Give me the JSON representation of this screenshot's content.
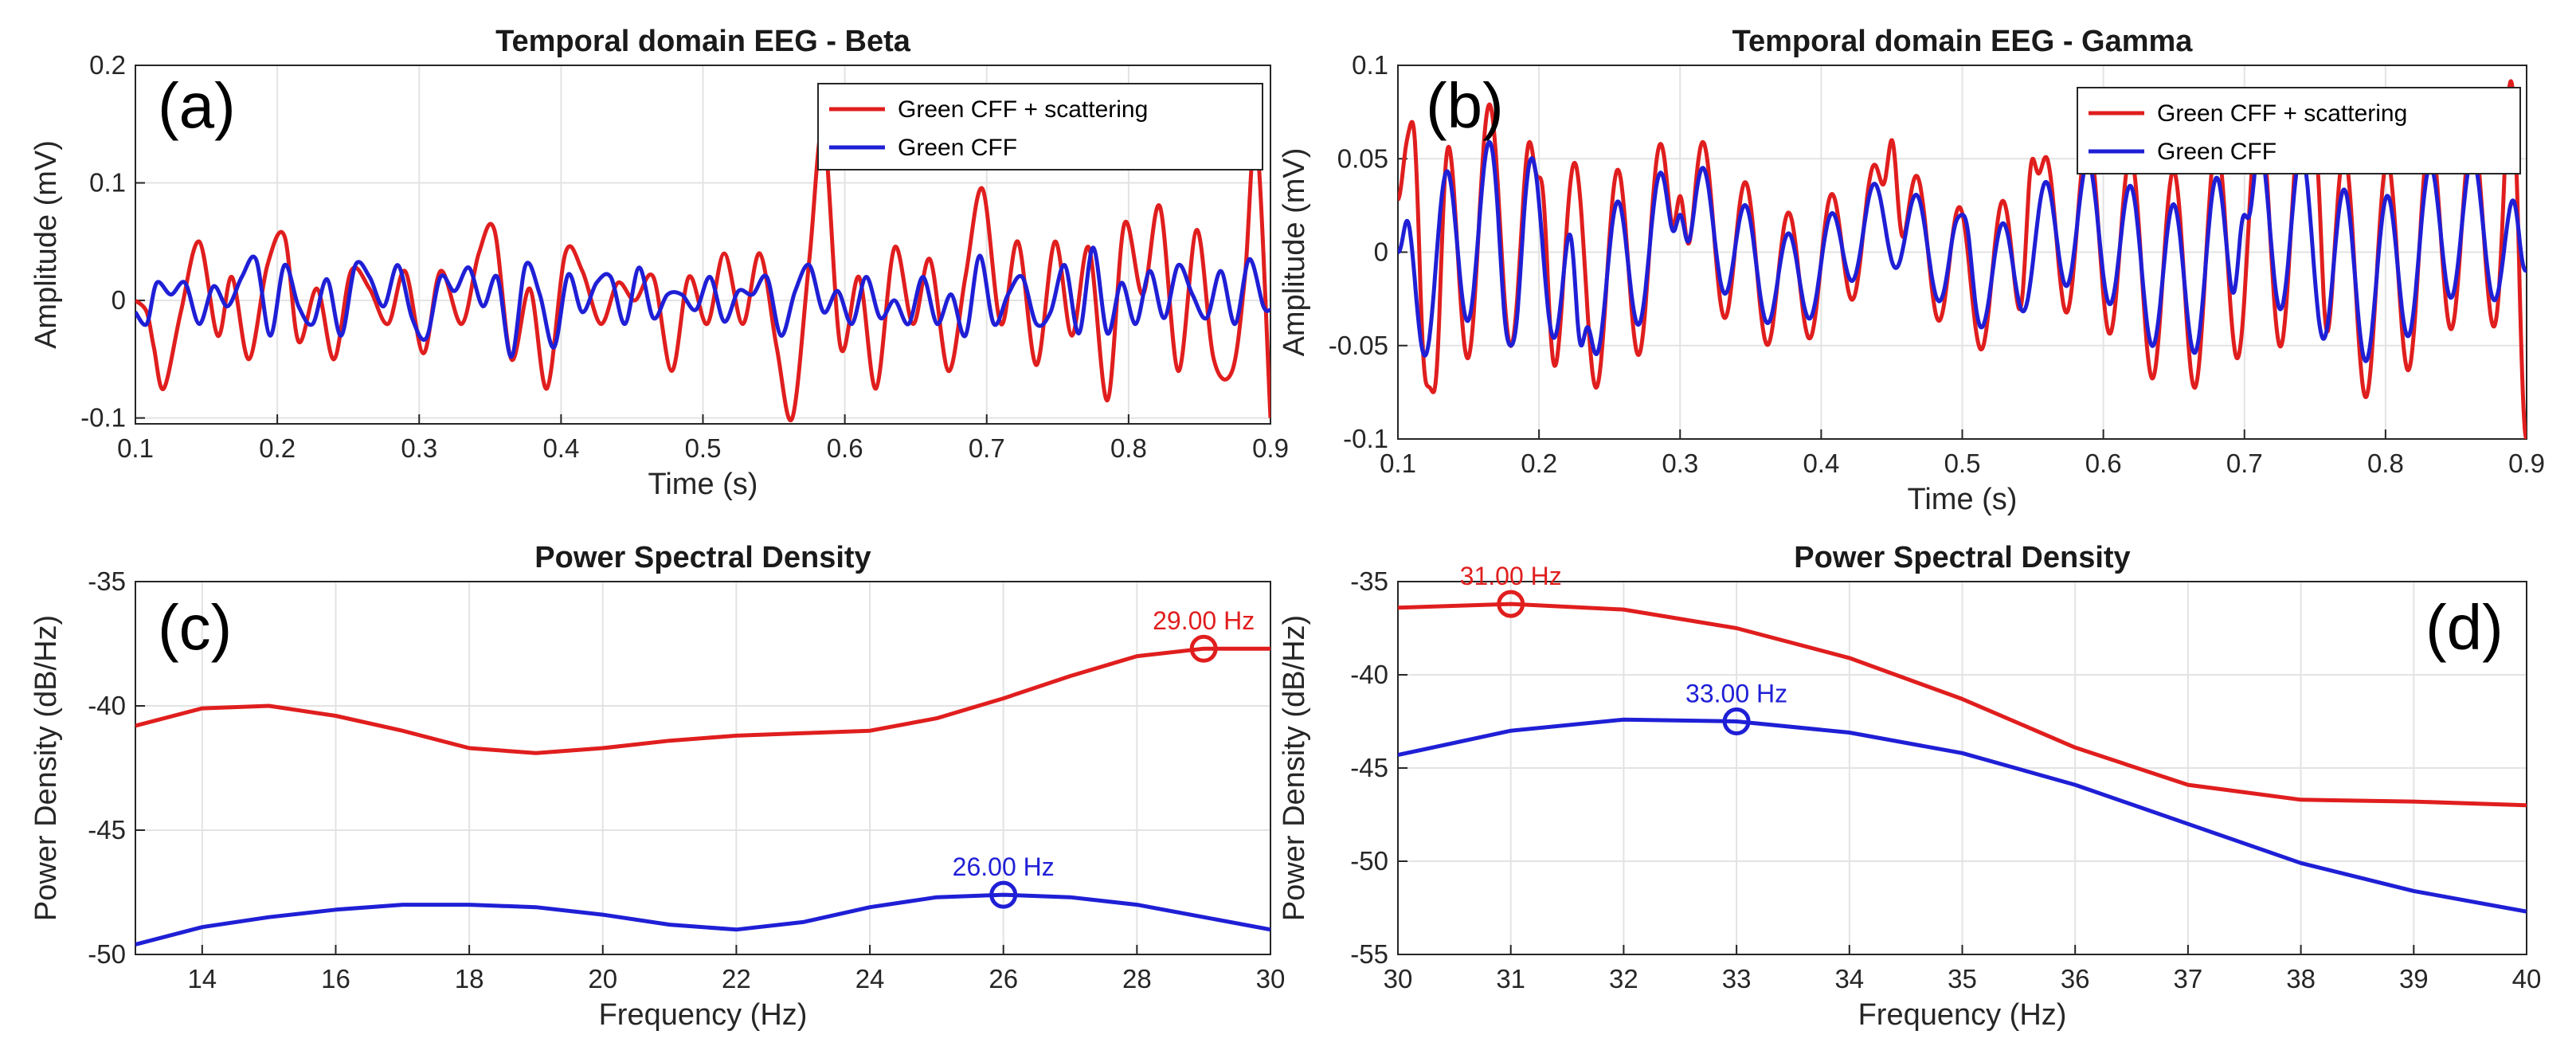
{
  "colors": {
    "red": "#e01e1e",
    "blue": "#1f1fd6",
    "grid": "#e3e3e3",
    "axis": "#262626"
  },
  "chart_data": [
    {
      "id": "a",
      "type": "line",
      "panel_label": "(a)",
      "title": "Temporal domain EEG - Beta",
      "xlabel": "Time (s)",
      "ylabel": "Amplitude (mV)",
      "xlim": [
        0.1,
        0.9
      ],
      "ylim": [
        -0.105,
        0.2
      ],
      "xticks": [
        0.1,
        0.2,
        0.3,
        0.4,
        0.5,
        0.6,
        0.7,
        0.8,
        0.9
      ],
      "xtick_labels": [
        "0.1",
        "0.2",
        "0.3",
        "0.4",
        "0.5",
        "0.6",
        "0.7",
        "0.8",
        "0.9"
      ],
      "yticks": [
        -0.1,
        0,
        0.1,
        0.2
      ],
      "ytick_labels": [
        "-0.1",
        "0",
        "0.1",
        "0.2"
      ],
      "legend": {
        "position": "top-right",
        "entries": [
          "Green CFF + scattering",
          "Green CFF"
        ]
      },
      "series": [
        {
          "name": "Green CFF + scattering",
          "color": "red",
          "x": [
            0.1,
            0.108,
            0.113,
            0.12,
            0.132,
            0.145,
            0.158,
            0.168,
            0.18,
            0.193,
            0.205,
            0.215,
            0.228,
            0.24,
            0.252,
            0.265,
            0.278,
            0.29,
            0.303,
            0.315,
            0.33,
            0.342,
            0.353,
            0.365,
            0.378,
            0.39,
            0.403,
            0.415,
            0.428,
            0.44,
            0.452,
            0.465,
            0.478,
            0.49,
            0.503,
            0.515,
            0.528,
            0.54,
            0.552,
            0.563,
            0.575,
            0.585,
            0.597,
            0.61,
            0.622,
            0.635,
            0.648,
            0.66,
            0.673,
            0.685,
            0.697,
            0.71,
            0.722,
            0.735,
            0.748,
            0.76,
            0.772,
            0.785,
            0.797,
            0.81,
            0.822,
            0.835,
            0.848,
            0.86,
            0.873,
            0.882,
            0.89,
            0.9
          ],
          "y": [
            0.0,
            -0.01,
            -0.04,
            -0.075,
            -0.01,
            0.05,
            -0.03,
            0.02,
            -0.05,
            0.03,
            0.055,
            -0.035,
            0.01,
            -0.05,
            0.025,
            0.01,
            -0.02,
            0.025,
            -0.045,
            0.025,
            -0.02,
            0.04,
            0.06,
            -0.05,
            0.01,
            -0.075,
            0.04,
            0.025,
            -0.02,
            0.015,
            0.0,
            0.02,
            -0.06,
            0.02,
            -0.02,
            0.04,
            -0.02,
            0.04,
            -0.04,
            -0.1,
            0.035,
            0.145,
            -0.04,
            0.02,
            -0.075,
            0.045,
            -0.02,
            0.035,
            -0.06,
            0.02,
            0.095,
            -0.02,
            0.05,
            -0.055,
            0.05,
            -0.03,
            0.045,
            -0.085,
            0.065,
            0.005,
            0.08,
            -0.06,
            0.06,
            -0.05,
            -0.06,
            0.02,
            0.14,
            -0.1
          ]
        },
        {
          "name": "Green CFF",
          "color": "blue",
          "x": [
            0.1,
            0.108,
            0.115,
            0.125,
            0.135,
            0.145,
            0.155,
            0.165,
            0.175,
            0.185,
            0.195,
            0.205,
            0.215,
            0.225,
            0.235,
            0.245,
            0.255,
            0.265,
            0.275,
            0.285,
            0.295,
            0.305,
            0.315,
            0.325,
            0.335,
            0.345,
            0.355,
            0.365,
            0.375,
            0.385,
            0.395,
            0.405,
            0.415,
            0.425,
            0.435,
            0.445,
            0.455,
            0.465,
            0.475,
            0.485,
            0.495,
            0.505,
            0.515,
            0.525,
            0.535,
            0.545,
            0.555,
            0.565,
            0.575,
            0.585,
            0.595,
            0.605,
            0.615,
            0.625,
            0.635,
            0.645,
            0.655,
            0.665,
            0.675,
            0.685,
            0.695,
            0.705,
            0.715,
            0.725,
            0.735,
            0.745,
            0.755,
            0.765,
            0.775,
            0.785,
            0.795,
            0.805,
            0.815,
            0.825,
            0.835,
            0.845,
            0.855,
            0.865,
            0.875,
            0.885,
            0.895,
            0.9
          ],
          "y": [
            -0.01,
            -0.02,
            0.015,
            0.005,
            0.015,
            -0.02,
            0.012,
            -0.005,
            0.02,
            0.035,
            -0.03,
            0.03,
            -0.005,
            -0.02,
            0.018,
            -0.03,
            0.03,
            0.02,
            -0.005,
            0.03,
            -0.015,
            -0.032,
            0.02,
            0.008,
            0.028,
            -0.005,
            0.02,
            -0.048,
            0.03,
            0.005,
            -0.04,
            0.022,
            -0.01,
            0.015,
            0.02,
            -0.02,
            0.028,
            -0.015,
            0.005,
            0.005,
            -0.008,
            0.02,
            -0.018,
            0.008,
            0.005,
            0.02,
            -0.03,
            0.008,
            0.03,
            -0.01,
            0.008,
            -0.02,
            0.02,
            -0.015,
            0.0,
            -0.02,
            0.02,
            -0.02,
            0.005,
            -0.03,
            0.038,
            -0.02,
            0.005,
            0.02,
            -0.02,
            -0.01,
            0.03,
            -0.028,
            0.045,
            -0.028,
            0.015,
            -0.02,
            0.025,
            -0.015,
            0.03,
            0.005,
            -0.015,
            0.025,
            -0.02,
            0.035,
            -0.005,
            -0.008
          ]
        }
      ]
    },
    {
      "id": "b",
      "type": "line",
      "panel_label": "(b)",
      "title": "Temporal domain EEG - Gamma",
      "xlabel": "Time (s)",
      "ylabel": "Amplitude (mV)",
      "xlim": [
        0.1,
        0.9
      ],
      "ylim": [
        -0.1,
        0.1
      ],
      "xticks": [
        0.1,
        0.2,
        0.3,
        0.4,
        0.5,
        0.6,
        0.7,
        0.8,
        0.9
      ],
      "xtick_labels": [
        "0.1",
        "0.2",
        "0.3",
        "0.4",
        "0.5",
        "0.6",
        "0.7",
        "0.8",
        "0.9"
      ],
      "yticks": [
        -0.1,
        -0.05,
        0,
        0.05,
        0.1
      ],
      "ytick_labels": [
        "-0.1",
        "-0.05",
        "0",
        "0.05",
        "0.1"
      ],
      "legend": {
        "position": "top-right",
        "entries": [
          "Green CFF + scattering",
          "Green CFF"
        ]
      },
      "series": [
        {
          "name": "Green CFF + scattering",
          "color": "red",
          "base_freq_hz": 33,
          "peak_amp": 0.065,
          "anchors": [
            [
              0.1,
              0.025
            ],
            [
              0.11,
              0.07
            ],
            [
              0.125,
              -0.075
            ],
            [
              0.2,
              0.04
            ],
            [
              0.3,
              0.03
            ],
            [
              0.45,
              0.06
            ],
            [
              0.55,
              0.05
            ],
            [
              0.75,
              0.055
            ],
            [
              0.89,
              0.1
            ],
            [
              0.9,
              -0.1
            ]
          ]
        },
        {
          "name": "Green CFF",
          "color": "blue",
          "base_freq_hz": 33,
          "peak_amp": 0.045,
          "anchors": [
            [
              0.1,
              0.0
            ],
            [
              0.18,
              -0.05
            ],
            [
              0.23,
              -0.05
            ],
            [
              0.3,
              0.02
            ],
            [
              0.5,
              0.02
            ],
            [
              0.7,
              0.02
            ],
            [
              0.9,
              -0.01
            ]
          ]
        }
      ]
    },
    {
      "id": "c",
      "type": "line",
      "panel_label": "(c)",
      "title": "Power Spectral Density",
      "xlabel": "Frequency (Hz)",
      "ylabel": "Power Density (dB/Hz)",
      "xlim": [
        13,
        30
      ],
      "ylim": [
        -50,
        -35
      ],
      "xticks": [
        14,
        16,
        18,
        20,
        22,
        24,
        26,
        28,
        30
      ],
      "xtick_labels": [
        "14",
        "16",
        "18",
        "20",
        "22",
        "24",
        "26",
        "28",
        "30"
      ],
      "yticks": [
        -50,
        -45,
        -40,
        -35
      ],
      "ytick_labels": [
        "-50",
        "-45",
        "-40",
        "-35"
      ],
      "series": [
        {
          "name": "Green CFF + scattering",
          "color": "red",
          "x": [
            13,
            14,
            15,
            16,
            17,
            18,
            19,
            20,
            21,
            22,
            23,
            24,
            25,
            26,
            27,
            28,
            29,
            30
          ],
          "y": [
            -40.8,
            -40.1,
            -40.0,
            -40.4,
            -41.0,
            -41.7,
            -41.9,
            -41.7,
            -41.4,
            -41.2,
            -41.1,
            -41.0,
            -40.5,
            -39.7,
            -38.8,
            -38.0,
            -37.7,
            -37.7
          ]
        },
        {
          "name": "Green CFF",
          "color": "blue",
          "x": [
            13,
            14,
            15,
            16,
            17,
            18,
            19,
            20,
            21,
            22,
            23,
            24,
            25,
            26,
            27,
            28,
            29,
            30
          ],
          "y": [
            -49.6,
            -48.9,
            -48.5,
            -48.2,
            -48.0,
            -48.0,
            -48.1,
            -48.4,
            -48.8,
            -49.0,
            -48.7,
            -48.1,
            -47.7,
            -47.6,
            -47.7,
            -48.0,
            -48.5,
            -49.0
          ]
        }
      ],
      "markers": [
        {
          "series": "Green CFF + scattering",
          "color": "red",
          "x": 29,
          "y": -37.7,
          "label": "29.00 Hz"
        },
        {
          "series": "Green CFF",
          "color": "blue",
          "x": 26,
          "y": -47.6,
          "label": "26.00 Hz"
        }
      ]
    },
    {
      "id": "d",
      "type": "line",
      "panel_label": "(d)",
      "title": "Power Spectral Density",
      "xlabel": "Frequency (Hz)",
      "ylabel": "Power Density (dB/Hz)",
      "xlim": [
        30,
        40
      ],
      "ylim": [
        -55,
        -35
      ],
      "xticks": [
        30,
        31,
        32,
        33,
        34,
        35,
        36,
        37,
        38,
        39,
        40
      ],
      "xtick_labels": [
        "30",
        "31",
        "32",
        "33",
        "34",
        "35",
        "36",
        "37",
        "38",
        "39",
        "40"
      ],
      "yticks": [
        -55,
        -50,
        -45,
        -40,
        -35
      ],
      "ytick_labels": [
        "-55",
        "-50",
        "-45",
        "-40",
        "-35"
      ],
      "series": [
        {
          "name": "Green CFF + scattering",
          "color": "red",
          "x": [
            30,
            31,
            32,
            33,
            34,
            35,
            36,
            37,
            38,
            39,
            40
          ],
          "y": [
            -36.4,
            -36.2,
            -36.5,
            -37.5,
            -39.1,
            -41.3,
            -43.9,
            -45.9,
            -46.7,
            -46.8,
            -47.0
          ]
        },
        {
          "name": "Green CFF",
          "color": "blue",
          "x": [
            30,
            31,
            32,
            33,
            34,
            35,
            36,
            37,
            38,
            39,
            40
          ],
          "y": [
            -44.3,
            -43.0,
            -42.4,
            -42.5,
            -43.1,
            -44.2,
            -45.9,
            -48.0,
            -50.1,
            -51.6,
            -52.7
          ]
        }
      ],
      "markers": [
        {
          "series": "Green CFF + scattering",
          "color": "red",
          "x": 31,
          "y": -36.2,
          "label": "31.00 Hz"
        },
        {
          "series": "Green CFF",
          "color": "blue",
          "x": 33,
          "y": -42.5,
          "label": "33.00 Hz"
        }
      ]
    }
  ]
}
